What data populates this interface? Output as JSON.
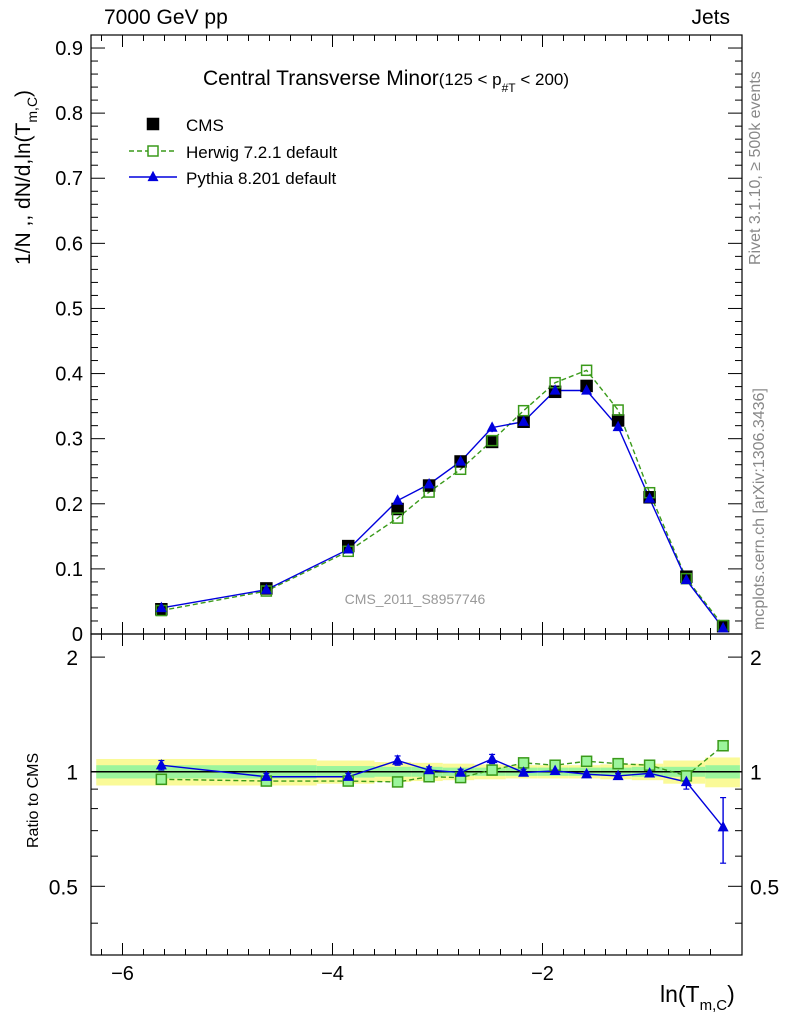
{
  "header": {
    "left": "7000 GeV pp",
    "right": "Jets"
  },
  "side": {
    "rivet": "Rivet 3.1.10, ≥ 500k events",
    "mcplots": "mcplots.cern.ch [arXiv:1306.3436]"
  },
  "watermark": "CMS_2011_S8957746",
  "colors": {
    "data": "#000000",
    "herwig": "#3a9a1a",
    "pythia": "#0000dd",
    "band_inner": "#9cf59c",
    "band_outer": "#fafa98"
  },
  "chart_data": [
    {
      "type": "line",
      "title_main": "Central Transverse Minor",
      "title_sub": "(125 < p",
      "title_sub_idx": "#T",
      "title_sub_end": " < 200)",
      "ylabel": "1/N ,, dN/d,ln(T",
      "ylabel_sub": "m,C",
      "ylabel_end": ")",
      "ylim": [
        0,
        0.92
      ],
      "yticks": [
        0,
        0.1,
        0.2,
        0.3,
        0.4,
        0.5,
        0.6,
        0.7,
        0.8,
        0.9
      ],
      "ytick_labels": [
        "0",
        "0.1",
        "0.2",
        "0.3",
        "0.4",
        "0.5",
        "0.6",
        "0.7",
        "0.8",
        "0.9"
      ],
      "xlim": [
        -6.3,
        -0.1
      ],
      "legend_position": "top-left",
      "x": [
        -5.63,
        -4.63,
        -3.85,
        -3.38,
        -3.08,
        -2.78,
        -2.48,
        -2.18,
        -1.88,
        -1.58,
        -1.28,
        -0.98,
        -0.63,
        -0.28
      ],
      "series": [
        {
          "name": "CMS",
          "style": "square-filled",
          "values": [
            0.038,
            0.07,
            0.135,
            0.192,
            0.228,
            0.265,
            0.295,
            0.326,
            0.372,
            0.381,
            0.328,
            0.21,
            0.088,
            0.012
          ]
        },
        {
          "name": "Herwig 7.2.1 default",
          "style": "square-open-dashed",
          "values": [
            0.036,
            0.066,
            0.127,
            0.178,
            0.218,
            0.253,
            0.297,
            0.343,
            0.386,
            0.405,
            0.344,
            0.217,
            0.085,
            0.013
          ]
        },
        {
          "name": "Pythia 8.201 default",
          "style": "triangle-filled-solid",
          "values": [
            0.04,
            0.068,
            0.13,
            0.205,
            0.23,
            0.265,
            0.317,
            0.326,
            0.374,
            0.374,
            0.318,
            0.208,
            0.083,
            0.009
          ],
          "errors": [
            0.001,
            0.002,
            0.003,
            0.006,
            0.005,
            0.005,
            0.007,
            0.006,
            0.006,
            0.006,
            0.005,
            0.004,
            0.003,
            0.002
          ]
        }
      ]
    },
    {
      "type": "line",
      "ylabel": "Ratio to CMS",
      "xlabel": "ln(T",
      "xlabel_sub": "m,C",
      "xlabel_end": ")",
      "ylim": [
        0.33,
        2.3
      ],
      "yticks": [
        0.5,
        1,
        2
      ],
      "ytick_labels": [
        "0.5",
        "1",
        "2"
      ],
      "xlim": [
        -6.3,
        -0.1
      ],
      "xticks": [
        -6,
        -4,
        -2
      ],
      "xtick_labels": [
        "−6",
        "−4",
        "−2"
      ],
      "x": [
        -5.63,
        -4.63,
        -3.85,
        -3.38,
        -3.08,
        -2.78,
        -2.48,
        -2.18,
        -1.88,
        -1.58,
        -1.28,
        -0.98,
        -0.63,
        -0.28
      ],
      "bin_edges": [
        -6.25,
        -4.15,
        -3.6,
        -3.25,
        -2.95,
        -2.65,
        -2.35,
        -2.05,
        -1.75,
        -1.45,
        -1.15,
        -0.85,
        -0.45,
        -0.12
      ],
      "bands": {
        "inner_half_width": [
          0.04,
          0.035,
          0.03,
          0.03,
          0.025,
          0.025,
          0.025,
          0.025,
          0.025,
          0.025,
          0.03,
          0.03,
          0.04,
          0.06
        ],
        "outer_half_width": [
          0.08,
          0.07,
          0.06,
          0.055,
          0.05,
          0.045,
          0.04,
          0.04,
          0.04,
          0.045,
          0.05,
          0.07,
          0.09,
          0.13
        ]
      },
      "series": [
        {
          "name": "Herwig 7.2.1 default",
          "values": [
            0.955,
            0.945,
            0.945,
            0.94,
            0.97,
            0.965,
            1.01,
            1.055,
            1.04,
            1.065,
            1.05,
            1.04,
            0.975,
            1.17
          ],
          "errors": [
            0.01,
            0.01,
            0.01,
            0.01,
            0.01,
            0.01,
            0.01,
            0.01,
            0.01,
            0.01,
            0.01,
            0.01,
            0.015,
            0.04
          ]
        },
        {
          "name": "Pythia 8.201 default",
          "values": [
            1.04,
            0.97,
            0.97,
            1.07,
            1.01,
            0.995,
            1.08,
            0.995,
            1.005,
            0.985,
            0.975,
            0.99,
            0.94,
            0.715
          ],
          "errors": [
            0.03,
            0.02,
            0.02,
            0.03,
            0.02,
            0.02,
            0.03,
            0.02,
            0.015,
            0.015,
            0.015,
            0.02,
            0.04,
            0.14
          ]
        }
      ]
    }
  ]
}
